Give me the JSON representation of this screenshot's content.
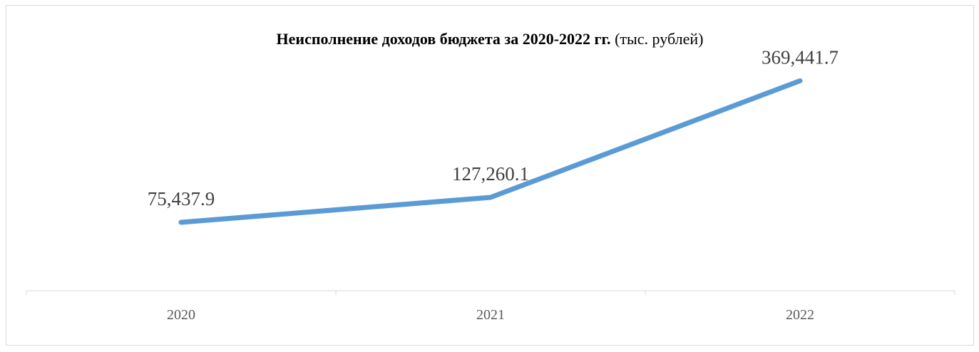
{
  "chart_data": {
    "type": "line",
    "title": "Неисполнение доходов бюджета за 2020-2022 гг.",
    "title_unit": "(тыс. рублей)",
    "categories": [
      "2020",
      "2021",
      "2022"
    ],
    "series": [
      {
        "values": [
          75437.9,
          127260.1,
          369441.7
        ],
        "labels": [
          "75,437.9",
          "127,260.1",
          "369,441.7"
        ],
        "color": "#5b9bd5"
      }
    ],
    "xlabel": "",
    "ylabel": "",
    "grid": false,
    "legend": "none"
  }
}
